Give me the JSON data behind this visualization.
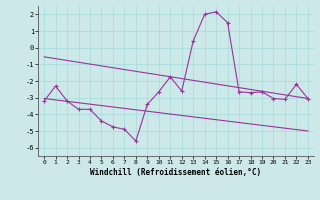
{
  "xlabel": "Windchill (Refroidissement éolien,°C)",
  "bg_color": "#cce8e8",
  "line_color": "#993399",
  "grid_color": "#aadddd",
  "xlim": [
    -0.5,
    23.5
  ],
  "ylim": [
    -6.5,
    2.5
  ],
  "yticks": [
    -6,
    -5,
    -4,
    -3,
    -2,
    -1,
    0,
    1,
    2
  ],
  "xticks": [
    0,
    1,
    2,
    3,
    4,
    5,
    6,
    7,
    8,
    9,
    10,
    11,
    12,
    13,
    14,
    15,
    16,
    17,
    18,
    19,
    20,
    21,
    22,
    23
  ],
  "x": [
    0,
    1,
    2,
    3,
    4,
    5,
    6,
    7,
    8,
    9,
    10,
    11,
    12,
    13,
    14,
    15,
    16,
    17,
    18,
    19,
    20,
    21,
    22,
    23
  ],
  "windchill": [
    -3.2,
    -2.3,
    -3.2,
    -3.7,
    -3.7,
    -4.4,
    -4.75,
    -4.9,
    -5.6,
    -3.4,
    -2.65,
    -1.75,
    -2.6,
    0.4,
    2.0,
    2.15,
    1.5,
    -2.65,
    -2.7,
    -2.65,
    -3.05,
    -3.1,
    -2.2,
    -3.05
  ],
  "trend1_x": [
    0,
    23
  ],
  "trend1_y": [
    -0.55,
    -3.05
  ],
  "trend2_x": [
    0,
    23
  ],
  "trend2_y": [
    -3.05,
    -5.0
  ]
}
